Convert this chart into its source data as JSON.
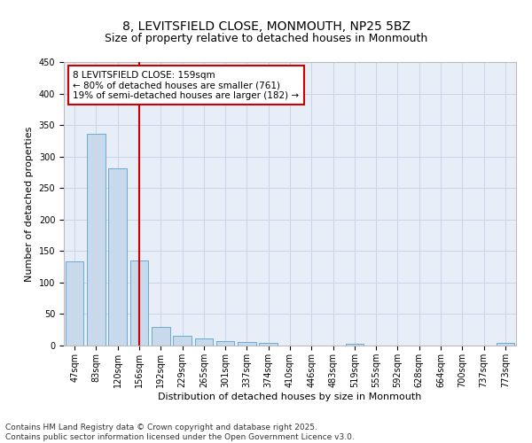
{
  "title": "8, LEVITSFIELD CLOSE, MONMOUTH, NP25 5BZ",
  "subtitle": "Size of property relative to detached houses in Monmouth",
  "xlabel": "Distribution of detached houses by size in Monmouth",
  "ylabel": "Number of detached properties",
  "categories": [
    "47sqm",
    "83sqm",
    "120sqm",
    "156sqm",
    "192sqm",
    "229sqm",
    "265sqm",
    "301sqm",
    "337sqm",
    "374sqm",
    "410sqm",
    "446sqm",
    "483sqm",
    "519sqm",
    "555sqm",
    "592sqm",
    "628sqm",
    "664sqm",
    "700sqm",
    "737sqm",
    "773sqm"
  ],
  "values": [
    133,
    336,
    281,
    135,
    29,
    15,
    11,
    7,
    6,
    4,
    0,
    0,
    0,
    3,
    0,
    0,
    0,
    0,
    0,
    0,
    4
  ],
  "bar_color": "#c8d9ec",
  "bar_edge_color": "#6aaad4",
  "vline_color": "#cc0000",
  "annotation_text": "8 LEVITSFIELD CLOSE: 159sqm\n← 80% of detached houses are smaller (761)\n19% of semi-detached houses are larger (182) →",
  "annotation_box_color": "#ffffff",
  "annotation_box_edge": "#cc0000",
  "ylim": [
    0,
    450
  ],
  "yticks": [
    0,
    50,
    100,
    150,
    200,
    250,
    300,
    350,
    400,
    450
  ],
  "grid_color": "#c8d4e8",
  "background_color": "#e8eef8",
  "footer_text": "Contains HM Land Registry data © Crown copyright and database right 2025.\nContains public sector information licensed under the Open Government Licence v3.0.",
  "title_fontsize": 10,
  "subtitle_fontsize": 9,
  "axis_label_fontsize": 8,
  "tick_fontsize": 7,
  "annotation_fontsize": 7.5,
  "footer_fontsize": 6.5
}
